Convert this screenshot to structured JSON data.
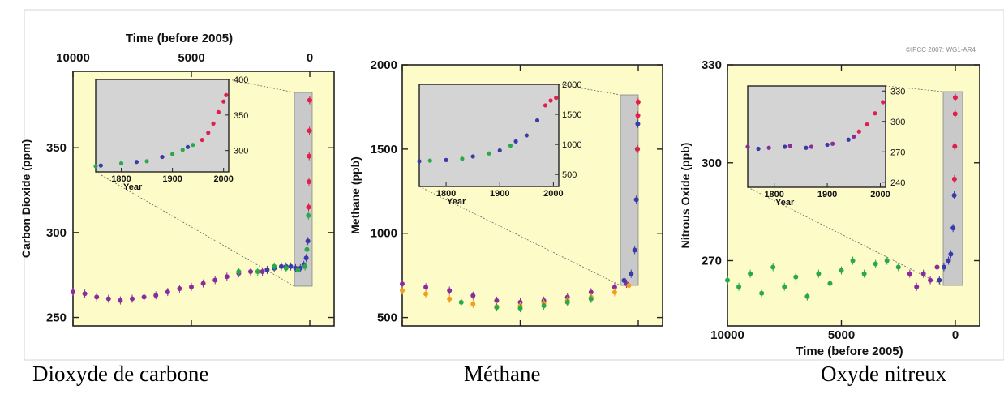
{
  "figure": {
    "watermark": "©IPCC 2007: WG1-AR4",
    "captions": [
      "Dioxyde de carbone",
      "Méthane",
      "Oxyde nitreux"
    ]
  },
  "chart_data": [
    {
      "type": "scatter",
      "name": "co2",
      "x_label": "Time (before 2005)",
      "x_axis_position": "top",
      "y_label": "Carbon Dioxide (ppm)",
      "xlim": [
        10000,
        0
      ],
      "ylim": [
        245,
        395
      ],
      "x_ticks": [
        10000,
        5000,
        0
      ],
      "y_ticks": [
        250,
        300,
        350
      ],
      "series": [
        {
          "color": "#8a2c9a",
          "points": [
            [
              10000,
              265
            ],
            [
              9500,
              264
            ],
            [
              9000,
              262
            ],
            [
              8500,
              261
            ],
            [
              8000,
              260
            ],
            [
              7500,
              261
            ],
            [
              7000,
              262
            ],
            [
              6500,
              263
            ],
            [
              6000,
              265
            ],
            [
              5500,
              267
            ],
            [
              5000,
              268
            ],
            [
              4500,
              270
            ],
            [
              4000,
              272
            ],
            [
              3500,
              274
            ],
            [
              3000,
              276
            ],
            [
              2500,
              277
            ],
            [
              2000,
              277
            ]
          ]
        },
        {
          "color": "#3a3aa8",
          "points": [
            [
              1800,
              278
            ],
            [
              1500,
              279
            ],
            [
              1200,
              280
            ],
            [
              1000,
              280
            ],
            [
              800,
              280
            ],
            [
              600,
              279
            ],
            [
              400,
              279
            ],
            [
              250,
              281
            ],
            [
              150,
              285
            ],
            [
              80,
              295
            ]
          ]
        },
        {
          "color": "#2aa84a",
          "points": [
            [
              3000,
              277
            ],
            [
              2200,
              277
            ],
            [
              1500,
              280
            ],
            [
              1000,
              279
            ],
            [
              500,
              278
            ],
            [
              200,
              280
            ],
            [
              120,
              290
            ],
            [
              60,
              310
            ]
          ]
        },
        {
          "color": "#e0204a",
          "points": [
            [
              50,
              315
            ],
            [
              35,
              330
            ],
            [
              25,
              345
            ],
            [
              15,
              360
            ],
            [
              5,
              378
            ]
          ]
        }
      ],
      "inset": {
        "x_label": "Year",
        "xlim": [
          1750,
          2010
        ],
        "ylim": [
          270,
          400
        ],
        "x_ticks": [
          1800,
          1900,
          2000
        ],
        "y_ticks": [
          300,
          350,
          400
        ],
        "series": [
          {
            "color": "#2aa84a",
            "points": [
              [
                1750,
                278
              ],
              [
                1800,
                282
              ],
              [
                1850,
                285
              ],
              [
                1900,
                295
              ],
              [
                1920,
                301
              ],
              [
                1940,
                308
              ]
            ]
          },
          {
            "color": "#3a3aa8",
            "points": [
              [
                1760,
                279
              ],
              [
                1830,
                284
              ],
              [
                1880,
                291
              ],
              [
                1930,
                305
              ]
            ]
          },
          {
            "color": "#e0204a",
            "points": [
              [
                1958,
                315
              ],
              [
                1970,
                325
              ],
              [
                1980,
                338
              ],
              [
                1990,
                354
              ],
              [
                2000,
                369
              ],
              [
                2005,
                378
              ]
            ]
          }
        ]
      }
    },
    {
      "type": "scatter",
      "name": "ch4",
      "y_label": "Methane (ppb)",
      "xlim": [
        10000,
        0
      ],
      "ylim": [
        450,
        2000
      ],
      "y_ticks": [
        500,
        1000,
        1500,
        2000
      ],
      "series": [
        {
          "color": "#8a2c9a",
          "points": [
            [
              10000,
              700
            ],
            [
              9000,
              680
            ],
            [
              8000,
              660
            ],
            [
              7000,
              630
            ],
            [
              6000,
              600
            ],
            [
              5000,
              590
            ],
            [
              4000,
              600
            ],
            [
              3000,
              620
            ],
            [
              2000,
              650
            ],
            [
              1000,
              680
            ],
            [
              500,
              700
            ]
          ]
        },
        {
          "color": "#f0a020",
          "points": [
            [
              10000,
              660
            ],
            [
              9000,
              640
            ],
            [
              8000,
              610
            ],
            [
              7000,
              580
            ],
            [
              6000,
              565
            ],
            [
              5000,
              570
            ],
            [
              4000,
              585
            ],
            [
              3000,
              600
            ],
            [
              2000,
              620
            ],
            [
              1000,
              650
            ],
            [
              400,
              690
            ]
          ]
        },
        {
          "color": "#2aa84a",
          "points": [
            [
              7500,
              590
            ],
            [
              6000,
              560
            ],
            [
              5000,
              555
            ],
            [
              4000,
              570
            ],
            [
              3000,
              590
            ],
            [
              2000,
              610
            ]
          ]
        },
        {
          "color": "#3a3aa8",
          "points": [
            [
              600,
              720
            ],
            [
              300,
              760
            ],
            [
              150,
              900
            ],
            [
              80,
              1200
            ],
            [
              40,
              1500
            ],
            [
              20,
              1650
            ]
          ]
        },
        {
          "color": "#e0204a",
          "points": [
            [
              30,
              1500
            ],
            [
              15,
              1700
            ],
            [
              5,
              1780
            ]
          ]
        }
      ],
      "inset": {
        "x_label": "Year",
        "xlim": [
          1750,
          2010
        ],
        "ylim": [
          300,
          2000
        ],
        "x_ticks": [
          1800,
          1900,
          2000
        ],
        "y_ticks": [
          500,
          1000,
          1500,
          2000
        ],
        "series": [
          {
            "color": "#3a3aa8",
            "points": [
              [
                1750,
                720
              ],
              [
                1800,
                740
              ],
              [
                1850,
                800
              ],
              [
                1900,
                900
              ],
              [
                1930,
                1050
              ],
              [
                1950,
                1150
              ],
              [
                1970,
                1400
              ]
            ]
          },
          {
            "color": "#2aa84a",
            "points": [
              [
                1770,
                730
              ],
              [
                1830,
                760
              ],
              [
                1880,
                850
              ],
              [
                1920,
                980
              ]
            ]
          },
          {
            "color": "#e0204a",
            "points": [
              [
                1985,
                1650
              ],
              [
                1995,
                1730
              ],
              [
                2005,
                1775
              ]
            ]
          }
        ]
      }
    },
    {
      "type": "scatter",
      "name": "n2o",
      "x_label": "Time (before 2005)",
      "x_axis_position": "bottom",
      "y_label": "Nitrous Oxide (ppb)",
      "xlim": [
        10000,
        0
      ],
      "ylim": [
        250,
        330
      ],
      "x_ticks": [
        10000,
        5000,
        0
      ],
      "y_ticks": [
        270,
        300,
        330
      ],
      "series": [
        {
          "color": "#2aa84a",
          "points": [
            [
              10000,
              264
            ],
            [
              9500,
              262
            ],
            [
              9000,
              266
            ],
            [
              8500,
              260
            ],
            [
              8000,
              268
            ],
            [
              7500,
              262
            ],
            [
              7000,
              265
            ],
            [
              6500,
              259
            ],
            [
              6000,
              266
            ],
            [
              5500,
              263
            ],
            [
              5000,
              267
            ],
            [
              4500,
              270
            ],
            [
              4000,
              266
            ],
            [
              3500,
              269
            ],
            [
              3000,
              270
            ],
            [
              2500,
              268
            ]
          ]
        },
        {
          "color": "#8a2c9a",
          "points": [
            [
              2000,
              266
            ],
            [
              1700,
              262
            ],
            [
              1400,
              266
            ],
            [
              1100,
              264
            ],
            [
              800,
              268
            ]
          ]
        },
        {
          "color": "#3a3aa8",
          "points": [
            [
              700,
              264
            ],
            [
              500,
              268
            ],
            [
              300,
              270
            ],
            [
              200,
              272
            ],
            [
              100,
              280
            ],
            [
              50,
              290
            ]
          ]
        },
        {
          "color": "#e0204a",
          "points": [
            [
              40,
              295
            ],
            [
              25,
              305
            ],
            [
              10,
              315
            ],
            [
              3,
              320
            ]
          ]
        }
      ],
      "inset": {
        "x_label": "Year",
        "xlim": [
          1750,
          2010
        ],
        "ylim": [
          235,
          335
        ],
        "x_ticks": [
          1800,
          1900,
          2000
        ],
        "y_ticks": [
          240,
          270,
          300,
          330
        ],
        "series": [
          {
            "color": "#8a2c9a",
            "points": [
              [
                1750,
                275
              ],
              [
                1790,
                274
              ],
              [
                1830,
                276
              ],
              [
                1870,
                275
              ],
              [
                1910,
                278
              ],
              [
                1950,
                285
              ]
            ]
          },
          {
            "color": "#3a3aa8",
            "points": [
              [
                1770,
                273
              ],
              [
                1820,
                275
              ],
              [
                1860,
                274
              ],
              [
                1900,
                277
              ],
              [
                1940,
                282
              ]
            ]
          },
          {
            "color": "#e0204a",
            "points": [
              [
                1960,
                290
              ],
              [
                1975,
                297
              ],
              [
                1990,
                308
              ],
              [
                2005,
                319
              ]
            ]
          }
        ]
      }
    }
  ]
}
